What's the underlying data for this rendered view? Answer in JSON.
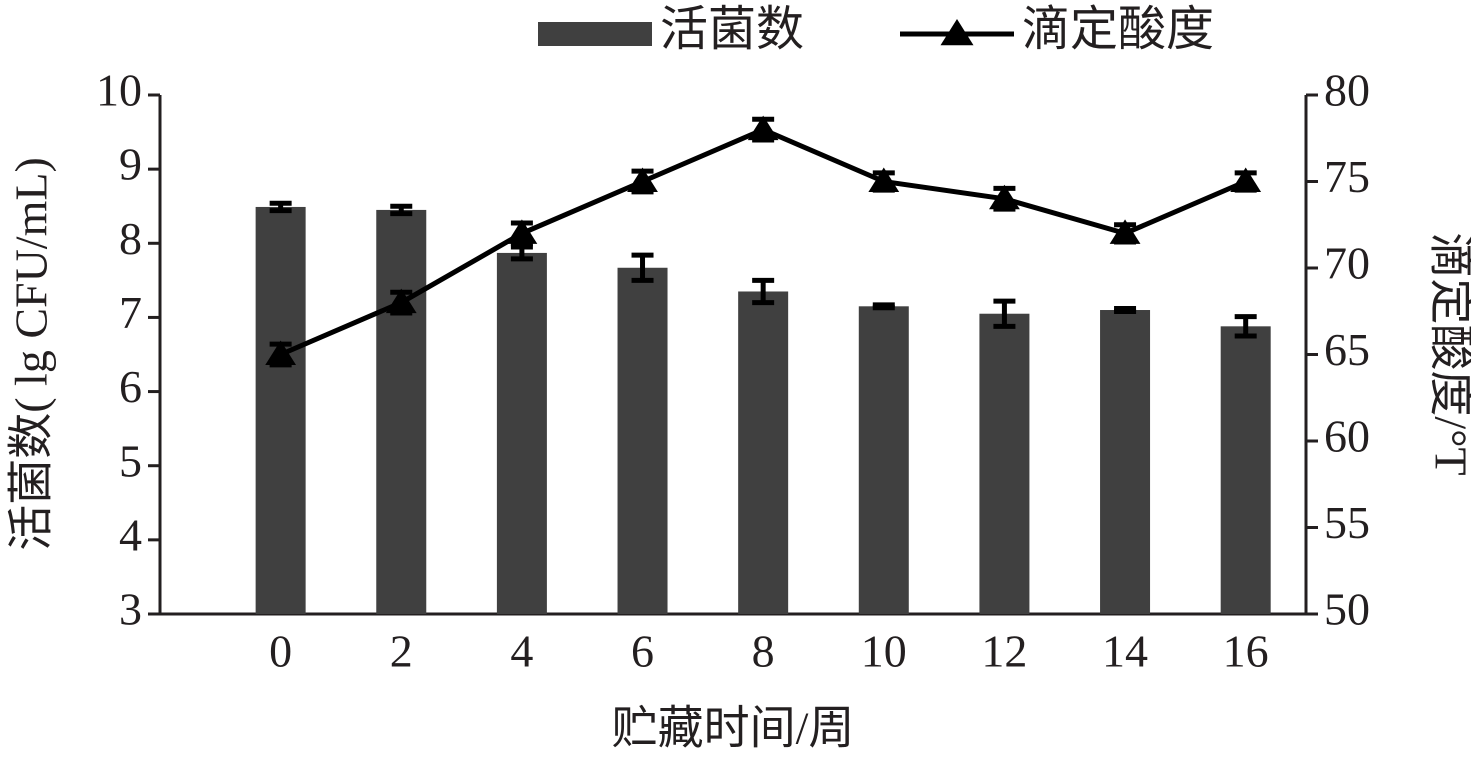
{
  "chart_data": {
    "type": "bar",
    "xlabel": "贮藏时间/周",
    "ylabel": "活菌数( lg CFU/mL)",
    "y2label": "滴定酸度/°T",
    "categories": [
      "0",
      "2",
      "4",
      "6",
      "8",
      "10",
      "12",
      "14",
      "16"
    ],
    "series": [
      {
        "name": "活菌数",
        "type": "bar",
        "color": "#404040",
        "values": [
          8.49,
          8.45,
          7.87,
          7.67,
          7.35,
          7.15,
          7.05,
          7.1,
          6.88
        ],
        "errors": [
          0.05,
          0.05,
          0.08,
          0.17,
          0.15,
          0.02,
          0.17,
          0.02,
          0.13
        ]
      },
      {
        "name": "滴定酸度",
        "type": "line",
        "axis": "y2",
        "color": "#000000",
        "values": [
          65,
          68,
          72,
          75,
          78,
          75,
          74,
          72,
          75
        ],
        "errors": [
          0.6,
          0.6,
          0.6,
          0.6,
          0.6,
          0.5,
          0.6,
          0.5,
          0.5
        ]
      }
    ],
    "ylim": [
      3,
      10
    ],
    "yticks": [
      3,
      4,
      5,
      6,
      7,
      8,
      9,
      10
    ],
    "y2lim": [
      50,
      80
    ],
    "y2ticks": [
      50,
      55,
      60,
      65,
      70,
      75,
      80
    ],
    "legend": "top"
  }
}
